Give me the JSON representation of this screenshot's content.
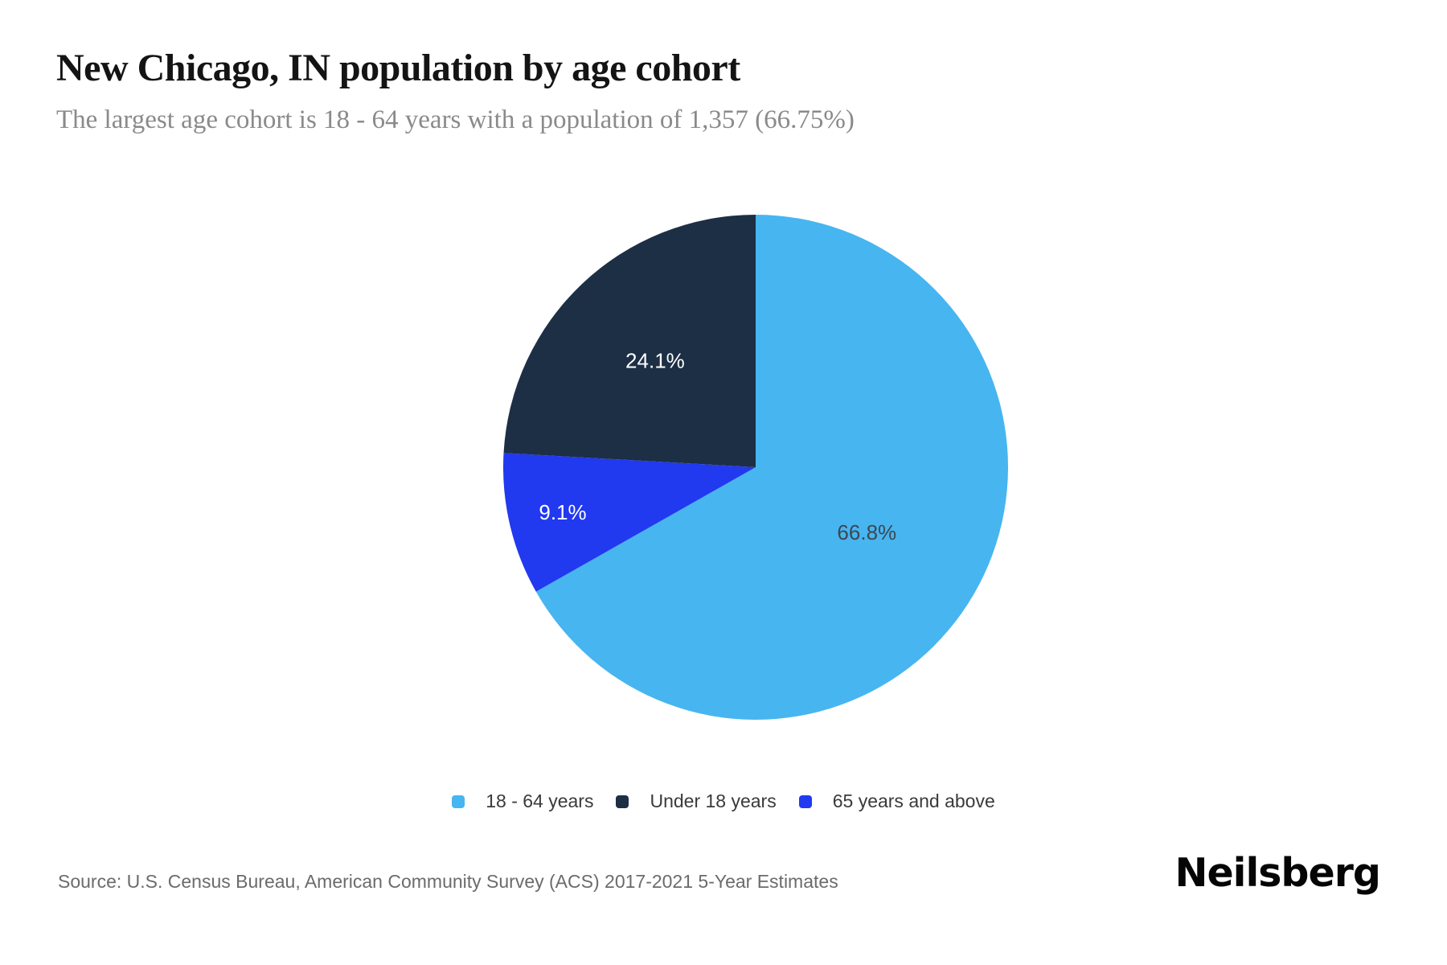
{
  "header": {
    "title": "New Chicago, IN population by age cohort",
    "subtitle": "The largest age cohort is 18 - 64 years with a population of 1,357 (66.75%)"
  },
  "chart_data": {
    "type": "pie",
    "title": "New Chicago, IN population by age cohort",
    "subtitle": "The largest age cohort is 18 - 64 years with a population of 1,357 (66.75%)",
    "unit": "percent",
    "start_angle": "top",
    "direction": "clockwise",
    "slices": [
      {
        "label": "18 - 64 years",
        "value": 66.8,
        "display": "66.8%",
        "color": "#47b5f0",
        "label_color": "#3c4854",
        "label_radius_frac": 0.51
      },
      {
        "label": "65 years and above",
        "value": 9.1,
        "display": "9.1%",
        "color": "#2139ef",
        "label_color": "#ffffff",
        "label_radius_frac": 0.785
      },
      {
        "label": "Under 18 years",
        "value": 24.1,
        "display": "24.1%",
        "color": "#1d2f45",
        "label_color": "#ffffff",
        "label_radius_frac": 0.58
      }
    ],
    "legend_order": [
      0,
      2,
      1
    ],
    "legend_position": "bottom-center",
    "largest_cohort": {
      "label": "18 - 64 years",
      "population": "1,357",
      "share": "66.75%"
    }
  },
  "footer": {
    "source": "Source: U.S. Census Bureau, American Community Survey (ACS) 2017-2021 5-Year Estimates",
    "brand": "Neilsberg"
  }
}
